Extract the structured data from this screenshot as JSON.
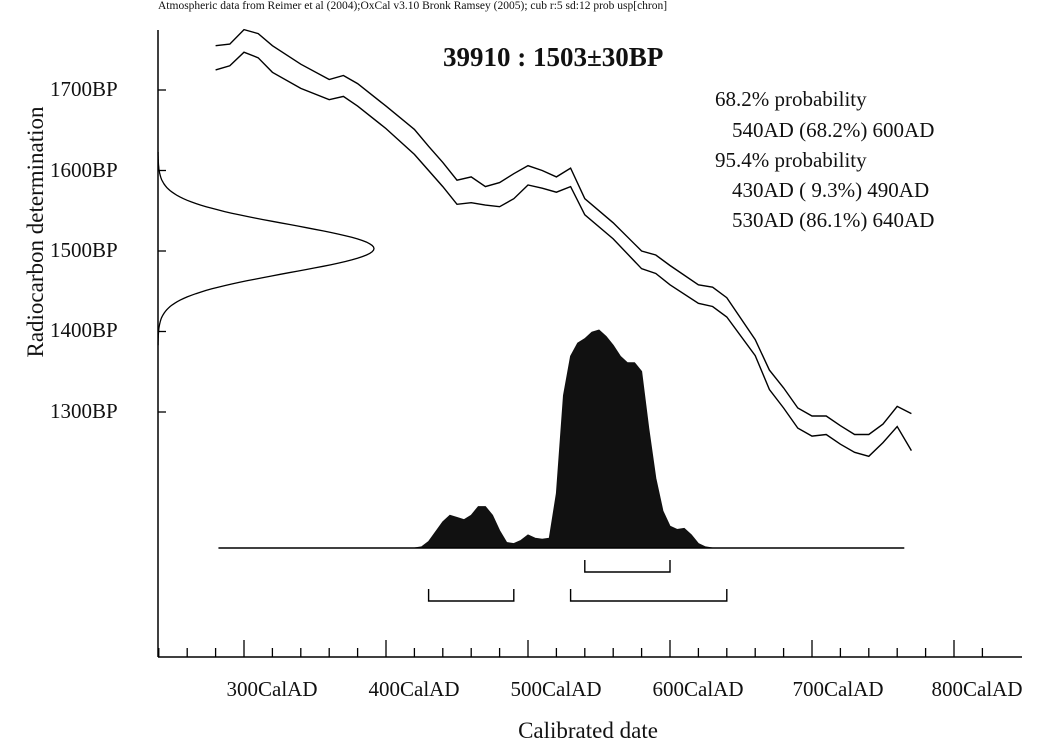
{
  "header_note": "Atmospheric data from Reimer et al (2004);OxCal v3.10 Bronk Ramsey (2005); cub r:5 sd:12 prob usp[chron]",
  "sample_title": "39910 : 1503±30BP",
  "probability": {
    "sigma1_heading": "68.2% probability",
    "sigma1_ranges": [
      "540AD (68.2%) 600AD"
    ],
    "sigma2_heading": "95.4% probability",
    "sigma2_ranges": [
      "430AD ( 9.3%) 490AD",
      "530AD (86.1%) 640AD"
    ]
  },
  "chart_data": {
    "type": "area",
    "title": "39910 : 1503±30BP",
    "xlabel": "Calibrated date",
    "ylabel": "Radiocarbon determination",
    "x_tick_labels": [
      "300CalAD",
      "400CalAD",
      "500CalAD",
      "600CalAD",
      "700CalAD",
      "800CalAD"
    ],
    "y_tick_labels": [
      "1700BP",
      "1600BP",
      "1500BP",
      "1400BP",
      "1300BP"
    ],
    "x_ticks": [
      300,
      400,
      500,
      600,
      700,
      800
    ],
    "y_ticks": [
      1700,
      1600,
      1500,
      1400,
      1300
    ],
    "xlim": [
      200,
      820
    ],
    "ylim": [
      1100,
      1775
    ],
    "grid": false,
    "radiocarbon_date": {
      "mean": 1503,
      "sd": 30
    },
    "calibration_curve_upper": {
      "x": [
        280,
        290,
        300,
        310,
        320,
        340,
        360,
        370,
        380,
        400,
        420,
        430,
        440,
        450,
        460,
        470,
        480,
        490,
        500,
        510,
        520,
        530,
        540,
        560,
        580,
        590,
        600,
        620,
        630,
        640,
        660,
        670,
        680,
        690,
        700,
        710,
        720,
        730,
        740,
        750,
        760,
        770
      ],
      "y": [
        1755,
        1757,
        1775,
        1770,
        1755,
        1732,
        1713,
        1718,
        1708,
        1680,
        1651,
        1630,
        1610,
        1588,
        1592,
        1580,
        1585,
        1596,
        1606,
        1600,
        1592,
        1603,
        1565,
        1535,
        1500,
        1495,
        1482,
        1458,
        1455,
        1442,
        1390,
        1352,
        1330,
        1305,
        1295,
        1295,
        1283,
        1272,
        1272,
        1285,
        1307,
        1298
      ]
    },
    "calibration_curve_lower": {
      "x": [
        280,
        290,
        300,
        310,
        320,
        340,
        360,
        370,
        380,
        400,
        420,
        430,
        440,
        450,
        460,
        470,
        480,
        490,
        500,
        510,
        520,
        530,
        540,
        560,
        580,
        590,
        600,
        620,
        630,
        640,
        660,
        670,
        680,
        690,
        700,
        710,
        720,
        730,
        740,
        750,
        760,
        770
      ],
      "y": [
        1725,
        1730,
        1747,
        1740,
        1722,
        1702,
        1688,
        1692,
        1680,
        1652,
        1620,
        1600,
        1580,
        1558,
        1560,
        1557,
        1555,
        1565,
        1582,
        1578,
        1573,
        1580,
        1545,
        1515,
        1478,
        1472,
        1458,
        1435,
        1431,
        1418,
        1370,
        1328,
        1305,
        1280,
        1270,
        1272,
        1260,
        1250,
        1245,
        1262,
        1282,
        1252
      ]
    },
    "posterior_distribution": {
      "x": [
        410,
        420,
        425,
        430,
        440,
        445,
        450,
        455,
        460,
        465,
        470,
        475,
        480,
        485,
        490,
        495,
        500,
        505,
        510,
        515,
        520,
        525,
        530,
        535,
        540,
        545,
        550,
        555,
        560,
        565,
        570,
        575,
        580,
        585,
        590,
        595,
        600,
        605,
        610,
        615,
        620,
        625,
        630,
        635,
        640,
        645,
        650,
        660
      ],
      "density": [
        0,
        0,
        0.005,
        0.03,
        0.12,
        0.15,
        0.14,
        0.13,
        0.15,
        0.19,
        0.19,
        0.15,
        0.08,
        0.025,
        0.02,
        0.035,
        0.06,
        0.045,
        0.04,
        0.045,
        0.25,
        0.7,
        0.88,
        0.94,
        0.96,
        0.99,
        1.0,
        0.97,
        0.93,
        0.88,
        0.85,
        0.85,
        0.81,
        0.55,
        0.32,
        0.17,
        0.1,
        0.085,
        0.09,
        0.06,
        0.02,
        0.005,
        0,
        0,
        0,
        0,
        0,
        0
      ]
    },
    "ranges_1sigma": [
      [
        540,
        600
      ]
    ],
    "ranges_2sigma": [
      [
        430,
        490
      ],
      [
        530,
        640
      ]
    ]
  }
}
